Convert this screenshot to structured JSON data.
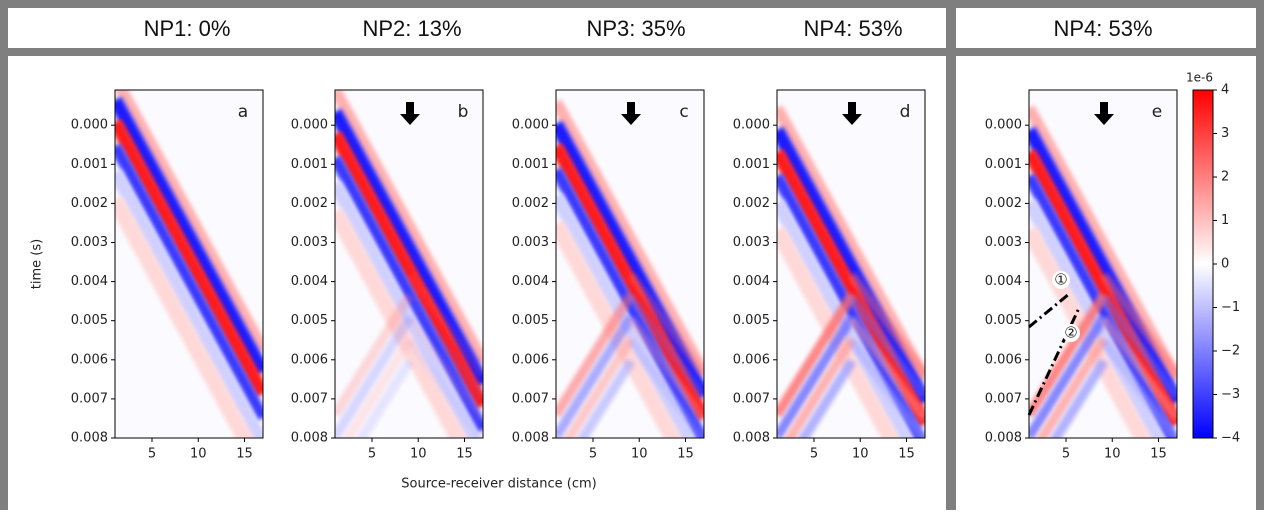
{
  "chart_data": [
    {
      "type": "heatmap",
      "title": "NP1: 0%",
      "panel_label": "a",
      "y_label": "time (s)",
      "xlim": [
        1,
        17
      ],
      "xticks": [
        5,
        10,
        15
      ],
      "ylim": [
        -0.0009,
        0.008
      ],
      "y_inverted": true,
      "yticks": [
        {
          "value": 0,
          "label": "0.000"
        },
        {
          "value": 0.001,
          "label": "0.001"
        },
        {
          "value": 0.002,
          "label": "0.002"
        },
        {
          "value": 0.003,
          "label": "0.003"
        },
        {
          "value": 0.004,
          "label": "0.004"
        },
        {
          "value": 0.005,
          "label": "0.005"
        },
        {
          "value": 0.006,
          "label": "0.006"
        },
        {
          "value": 0.007,
          "label": "0.007"
        },
        {
          "value": 0.008,
          "label": "0.008"
        }
      ]
    },
    {
      "type": "heatmap",
      "title": "NP2: 13%",
      "panel_label": "b",
      "xlim": [
        1,
        17
      ],
      "xticks": [
        5,
        10,
        15
      ],
      "ylim": [
        -0.0009,
        0.008
      ],
      "y_inverted": true,
      "yticks": [
        {
          "value": 0,
          "label": "0.000"
        },
        {
          "value": 0.001,
          "label": "0.001"
        },
        {
          "value": 0.002,
          "label": "0.002"
        },
        {
          "value": 0.003,
          "label": "0.003"
        },
        {
          "value": 0.004,
          "label": "0.004"
        },
        {
          "value": 0.005,
          "label": "0.005"
        },
        {
          "value": 0.006,
          "label": "0.006"
        },
        {
          "value": 0.007,
          "label": "0.007"
        },
        {
          "value": 0.008,
          "label": "0.008"
        }
      ]
    },
    {
      "type": "heatmap",
      "title": "NP3: 35%",
      "panel_label": "c",
      "xlim": [
        1,
        17
      ],
      "xticks": [
        5,
        10,
        15
      ],
      "ylim": [
        -0.0009,
        0.008
      ],
      "y_inverted": true,
      "yticks": [
        {
          "value": 0,
          "label": "0.000"
        },
        {
          "value": 0.001,
          "label": "0.001"
        },
        {
          "value": 0.002,
          "label": "0.002"
        },
        {
          "value": 0.003,
          "label": "0.003"
        },
        {
          "value": 0.004,
          "label": "0.004"
        },
        {
          "value": 0.005,
          "label": "0.005"
        },
        {
          "value": 0.006,
          "label": "0.006"
        },
        {
          "value": 0.007,
          "label": "0.007"
        },
        {
          "value": 0.008,
          "label": "0.008"
        }
      ]
    },
    {
      "type": "heatmap",
      "title": "NP4: 53%",
      "panel_label": "d",
      "xlim": [
        1,
        17
      ],
      "xticks": [
        5,
        10,
        15
      ],
      "ylim": [
        -0.0009,
        0.008
      ],
      "y_inverted": true,
      "yticks": [
        {
          "value": 0,
          "label": "0.000"
        },
        {
          "value": 0.001,
          "label": "0.001"
        },
        {
          "value": 0.002,
          "label": "0.002"
        },
        {
          "value": 0.003,
          "label": "0.003"
        },
        {
          "value": 0.004,
          "label": "0.004"
        },
        {
          "value": 0.005,
          "label": "0.005"
        },
        {
          "value": 0.006,
          "label": "0.006"
        },
        {
          "value": 0.007,
          "label": "0.007"
        },
        {
          "value": 0.008,
          "label": "0.008"
        }
      ]
    },
    {
      "type": "heatmap",
      "title": "NP4: 53%",
      "panel_label": "e",
      "annotations": [
        "①",
        "②"
      ],
      "xlim": [
        1,
        17
      ],
      "xticks": [
        5,
        10,
        15
      ],
      "ylim": [
        -0.0009,
        0.008
      ],
      "y_inverted": true,
      "yticks": [
        {
          "value": 0,
          "label": "0.000"
        },
        {
          "value": 0.001,
          "label": "0.001"
        },
        {
          "value": 0.002,
          "label": "0.002"
        },
        {
          "value": 0.003,
          "label": "0.003"
        },
        {
          "value": 0.004,
          "label": "0.004"
        },
        {
          "value": 0.005,
          "label": "0.005"
        },
        {
          "value": 0.006,
          "label": "0.006"
        },
        {
          "value": 0.007,
          "label": "0.007"
        },
        {
          "value": 0.008,
          "label": "0.008"
        }
      ],
      "colorbar": {
        "label": "1e-6",
        "lim": [
          -4,
          4
        ],
        "ticks": [
          {
            "value": -4,
            "label": "−4"
          },
          {
            "value": -3,
            "label": "−3"
          },
          {
            "value": -2,
            "label": "−2"
          },
          {
            "value": -1,
            "label": "−1"
          },
          0,
          1,
          2,
          3,
          4
        ]
      }
    }
  ],
  "x_label": "Source-receiver distance (cm)"
}
